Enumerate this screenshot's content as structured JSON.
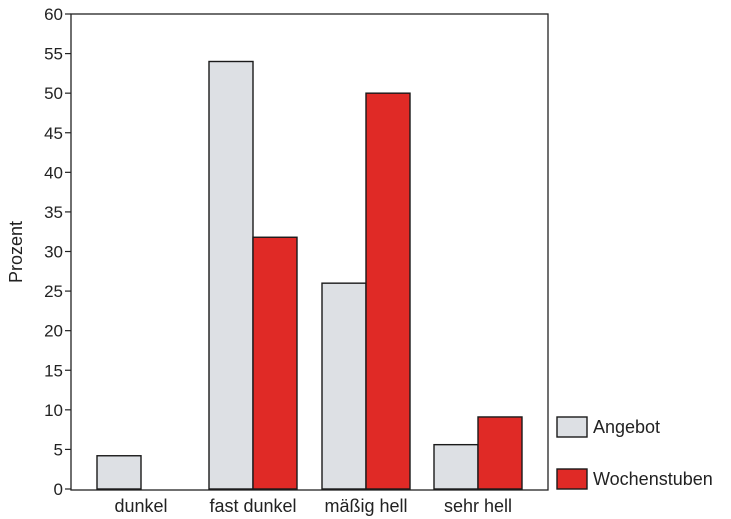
{
  "chart_data": {
    "type": "bar",
    "title": "",
    "xlabel": "",
    "ylabel": "Prozent",
    "ylim": [
      0,
      60
    ],
    "yticks": [
      0,
      5,
      10,
      15,
      20,
      25,
      30,
      35,
      40,
      45,
      50,
      55,
      60
    ],
    "categories": [
      "dunkel",
      "fast dunkel",
      "mäßig hell",
      "sehr hell"
    ],
    "series": [
      {
        "name": "Angebot",
        "color": "#dde0e4",
        "values": [
          4.2,
          54,
          26,
          5.6
        ]
      },
      {
        "name": "Wochenstuben",
        "color": "#e02a26",
        "values": [
          0,
          31.8,
          50,
          9.1
        ]
      }
    ],
    "grid": false,
    "legend_position": "bottom-right, outside plot"
  }
}
